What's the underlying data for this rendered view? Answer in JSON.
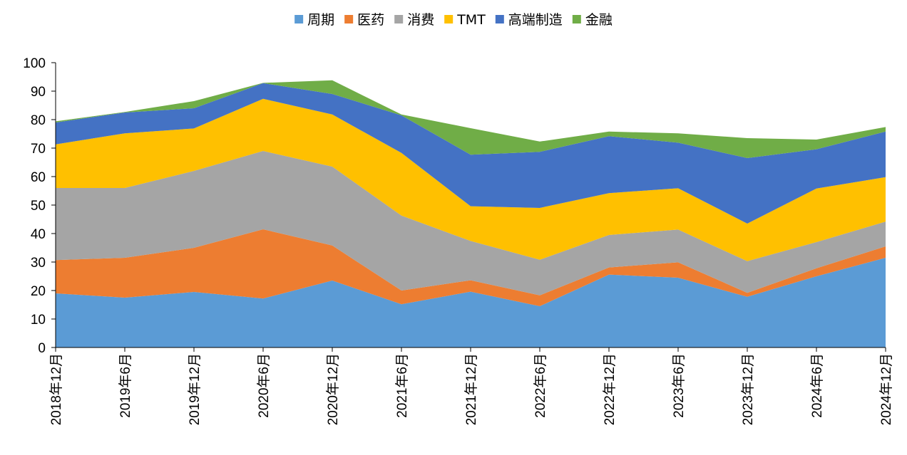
{
  "chart_data": {
    "type": "area",
    "stacked": true,
    "categories": [
      "2018年12月",
      "2019年6月",
      "2019年12月",
      "2020年6月",
      "2020年12月",
      "2021年6月",
      "2021年12月",
      "2022年6月",
      "2022年12月",
      "2023年6月",
      "2023年12月",
      "2024年6月",
      "2024年12月"
    ],
    "series": [
      {
        "name": "周期",
        "color": "#5B9BD5",
        "values": [
          19,
          17.5,
          19.5,
          17.2,
          23.5,
          15.2,
          19.6,
          14.5,
          25.6,
          24.5,
          17.8,
          25,
          31.5
        ]
      },
      {
        "name": "医药",
        "color": "#ED7D31",
        "values": [
          11.7,
          14,
          15.5,
          24.3,
          12.3,
          4.8,
          4,
          3.8,
          2.5,
          5.4,
          1.4,
          2.8,
          4
        ]
      },
      {
        "name": "消费",
        "color": "#A5A5A5",
        "values": [
          25.3,
          24.5,
          27,
          27.5,
          27.7,
          26.3,
          13.8,
          12.5,
          11.4,
          11.5,
          11.1,
          9.2,
          8.7
        ]
      },
      {
        "name": "TMT",
        "color": "#FFC000",
        "values": [
          15.3,
          19.2,
          14.9,
          18.3,
          18.3,
          22,
          12.2,
          18.2,
          14.7,
          14.5,
          13.2,
          18.8,
          15.6
        ]
      },
      {
        "name": "高端制造",
        "color": "#4472C4",
        "values": [
          7.7,
          7.3,
          7.1,
          5.5,
          7.2,
          13.2,
          18.1,
          19.7,
          20,
          16,
          23,
          13.8,
          16
        ]
      },
      {
        "name": "金融",
        "color": "#70AD47",
        "values": [
          0.4,
          0.2,
          2.5,
          0.1,
          4.8,
          0.3,
          9.3,
          3.6,
          1.6,
          3.3,
          7,
          3.4,
          1.6
        ]
      }
    ],
    "ylim": [
      0,
      100
    ],
    "yticks": [
      "0",
      "10",
      "20",
      "30",
      "40",
      "50",
      "60",
      "70",
      "80",
      "90",
      "100"
    ],
    "legend_position": "top-center",
    "grid": false
  }
}
